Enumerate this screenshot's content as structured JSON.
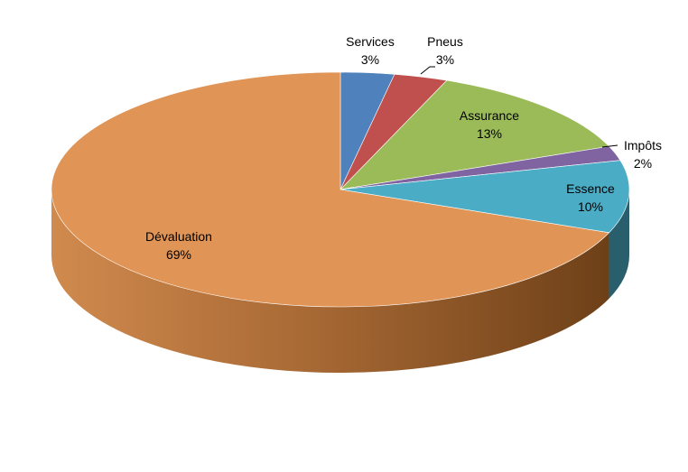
{
  "chart_data": {
    "type": "pie",
    "style": "3d",
    "title": "",
    "legend": "none",
    "data_labels": "category-and-percent",
    "slices": [
      {
        "label": "Services",
        "value": 3,
        "display": "3%",
        "color": "#4F81BD"
      },
      {
        "label": "Pneus",
        "value": 3,
        "display": "3%",
        "color": "#C0504D"
      },
      {
        "label": "Assurance",
        "value": 13,
        "display": "13%",
        "color": "#9BBB59"
      },
      {
        "label": "Impôts",
        "value": 2,
        "display": "2%",
        "color": "#8064A2"
      },
      {
        "label": "Essence",
        "value": 10,
        "display": "10%",
        "color": "#4BACC6"
      },
      {
        "label": "Dévaluation",
        "value": 69,
        "display": "69%",
        "color": "#E09455"
      }
    ]
  }
}
